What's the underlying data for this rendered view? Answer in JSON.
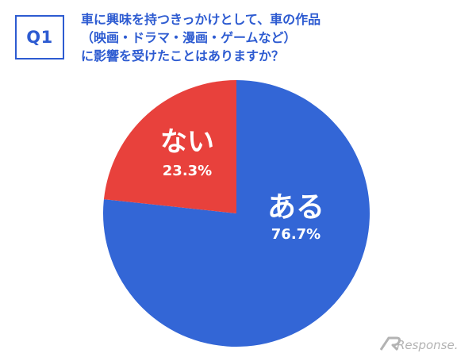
{
  "badge": "Q1",
  "question": [
    "車に興味を持つきっかけとして、車の作品",
    "（映画・ドラマ・漫画・ゲームなど）",
    "に影響を受けたことはありますか？"
  ],
  "watermark": "Response.",
  "colors": {
    "accent": "#2d5bd1",
    "aru": "#3366d6",
    "nai": "#e8413c",
    "label": "#ffffff",
    "watermark": "#b3b3b3"
  },
  "chart_data": {
    "type": "pie",
    "title": "",
    "slices": [
      {
        "label": "ある",
        "value": 76.7,
        "value_label": "76.7%",
        "color": "#3366d6"
      },
      {
        "label": "ない",
        "value": 23.3,
        "value_label": "23.3%",
        "color": "#e8413c"
      }
    ],
    "start": "12 o'clock",
    "direction": "clockwise",
    "legend": "none"
  }
}
